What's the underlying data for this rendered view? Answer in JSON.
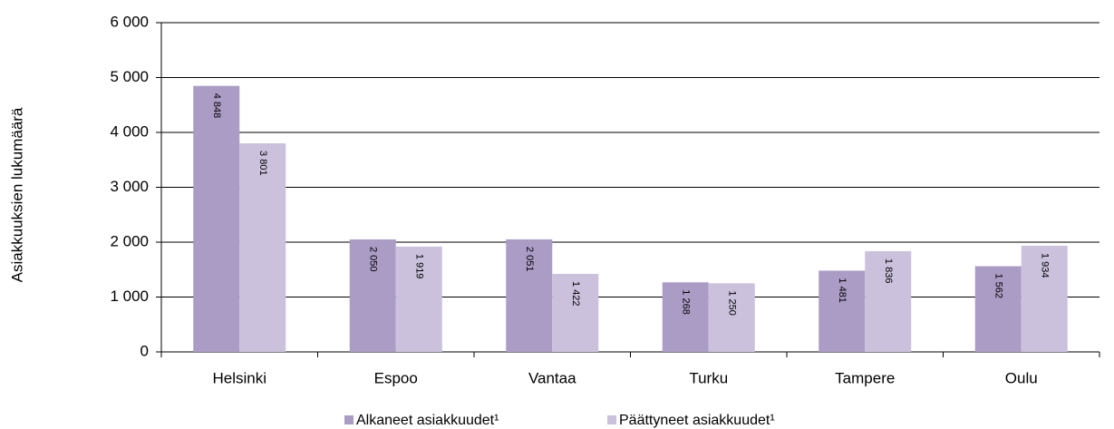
{
  "chart_data": {
    "type": "bar",
    "y_label": "Asiakkuuksien lukumäärä",
    "categories": [
      "Helsinki",
      "Espoo",
      "Vantaa",
      "Turku",
      "Tampere",
      "Oulu"
    ],
    "series": [
      {
        "name": "Alkaneet asiakkuudet¹",
        "color": "#ab9cc5",
        "values": [
          4848,
          2050,
          2051,
          1268,
          1481,
          1562
        ],
        "value_labels": [
          "4 848",
          "2 050",
          "2 051",
          "1 268",
          "1 481",
          "1 562"
        ]
      },
      {
        "name": "Päättyneet asiakkuudet¹",
        "color": "#cbc1dc",
        "values": [
          3801,
          1919,
          1422,
          1250,
          1836,
          1934
        ],
        "value_labels": [
          "3 801",
          "1 919",
          "1 422",
          "1 250",
          "1 836",
          "1 934"
        ]
      }
    ],
    "ylim": [
      0,
      6000
    ],
    "yticks": [
      {
        "value": 0,
        "label": "0"
      },
      {
        "value": 1000,
        "label": "1 000"
      },
      {
        "value": 2000,
        "label": "2 000"
      },
      {
        "value": 3000,
        "label": "3 000"
      },
      {
        "value": 4000,
        "label": "4 000"
      },
      {
        "value": 5000,
        "label": "5 000"
      },
      {
        "value": 6000,
        "label": "6 000"
      }
    ],
    "grid": true,
    "legend": "bottom"
  }
}
